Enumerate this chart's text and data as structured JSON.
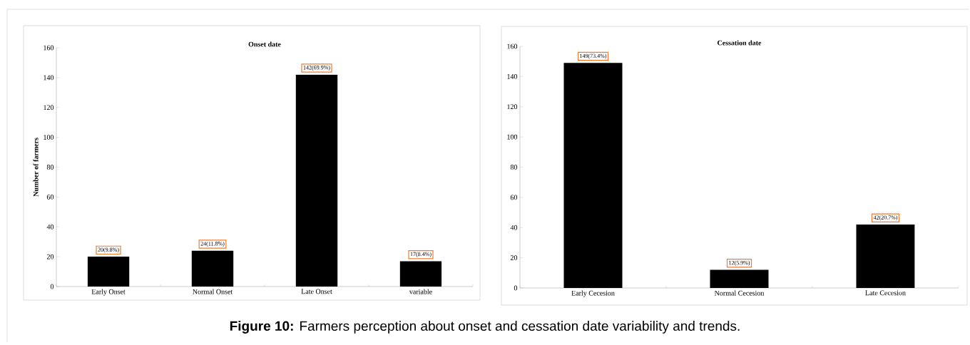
{
  "chart_data": [
    {
      "type": "bar",
      "title": "Onset date",
      "ylabel": "Number of farmers",
      "categories": [
        "Early Onset",
        "Normal Onset",
        "Late Onset",
        "variable"
      ],
      "values": [
        20,
        24,
        142,
        17
      ],
      "value_labels": [
        "20(9.8%)",
        "24(11.8%)",
        "142(69.9%)",
        "17(8.4%)"
      ],
      "color": "#000000",
      "ylim": [
        0,
        160
      ],
      "yticks": [
        0,
        20,
        40,
        60,
        80,
        100,
        120,
        140,
        160
      ],
      "grid": false,
      "annotations": [
        "**Figure 10:** Farmers perception about onset and cessation date variability and trends."
      ]
    },
    {
      "type": "bar",
      "title": "Cessation date",
      "categories": [
        "Early Cecesion",
        "Normal Cecesion",
        "Late Cecesion"
      ],
      "values": [
        149,
        12,
        42
      ],
      "value_labels": [
        "149(73.4%)",
        "12(5.9%)",
        "42(20.7%)"
      ],
      "color": "#000000",
      "ylim": [
        0,
        160
      ],
      "yticks": [
        0,
        20,
        40,
        60,
        80,
        100,
        120,
        140,
        160
      ],
      "grid": false
    }
  ]
}
